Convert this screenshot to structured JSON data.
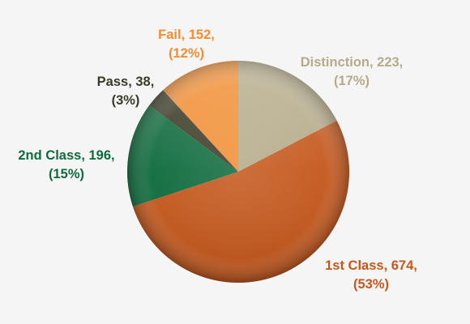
{
  "chart_data": {
    "type": "pie",
    "title": "",
    "slices": [
      {
        "label": "Distinction",
        "value": 223,
        "percent": "17%",
        "color": "#b5ab89",
        "text_line1": "Distinction, 223,",
        "text_line2": "(17%)"
      },
      {
        "label": "1st Class",
        "value": 674,
        "percent": "53%",
        "color": "#c5581d",
        "text_line1": "1st Class, 674,",
        "text_line2": "(53%)"
      },
      {
        "label": "2nd Class",
        "value": 196,
        "percent": "15%",
        "color": "#0f6b3e",
        "text_line1": "2nd Class, 196,",
        "text_line2": "(15%)"
      },
      {
        "label": "Pass",
        "value": 38,
        "percent": "3%",
        "color": "#3b3a27",
        "text_line1": "Pass, 38,",
        "text_line2": "(3%)"
      },
      {
        "label": "Fail",
        "value": 152,
        "percent": "12%",
        "color": "#f18d32",
        "text_line1": "Fail, 152,",
        "text_line2": "(12%)"
      }
    ],
    "start": "12 o'clock",
    "direction": "clockwise",
    "legend": "none",
    "data_labels": "outside"
  },
  "colors": {
    "background": "#f5f5f5"
  }
}
